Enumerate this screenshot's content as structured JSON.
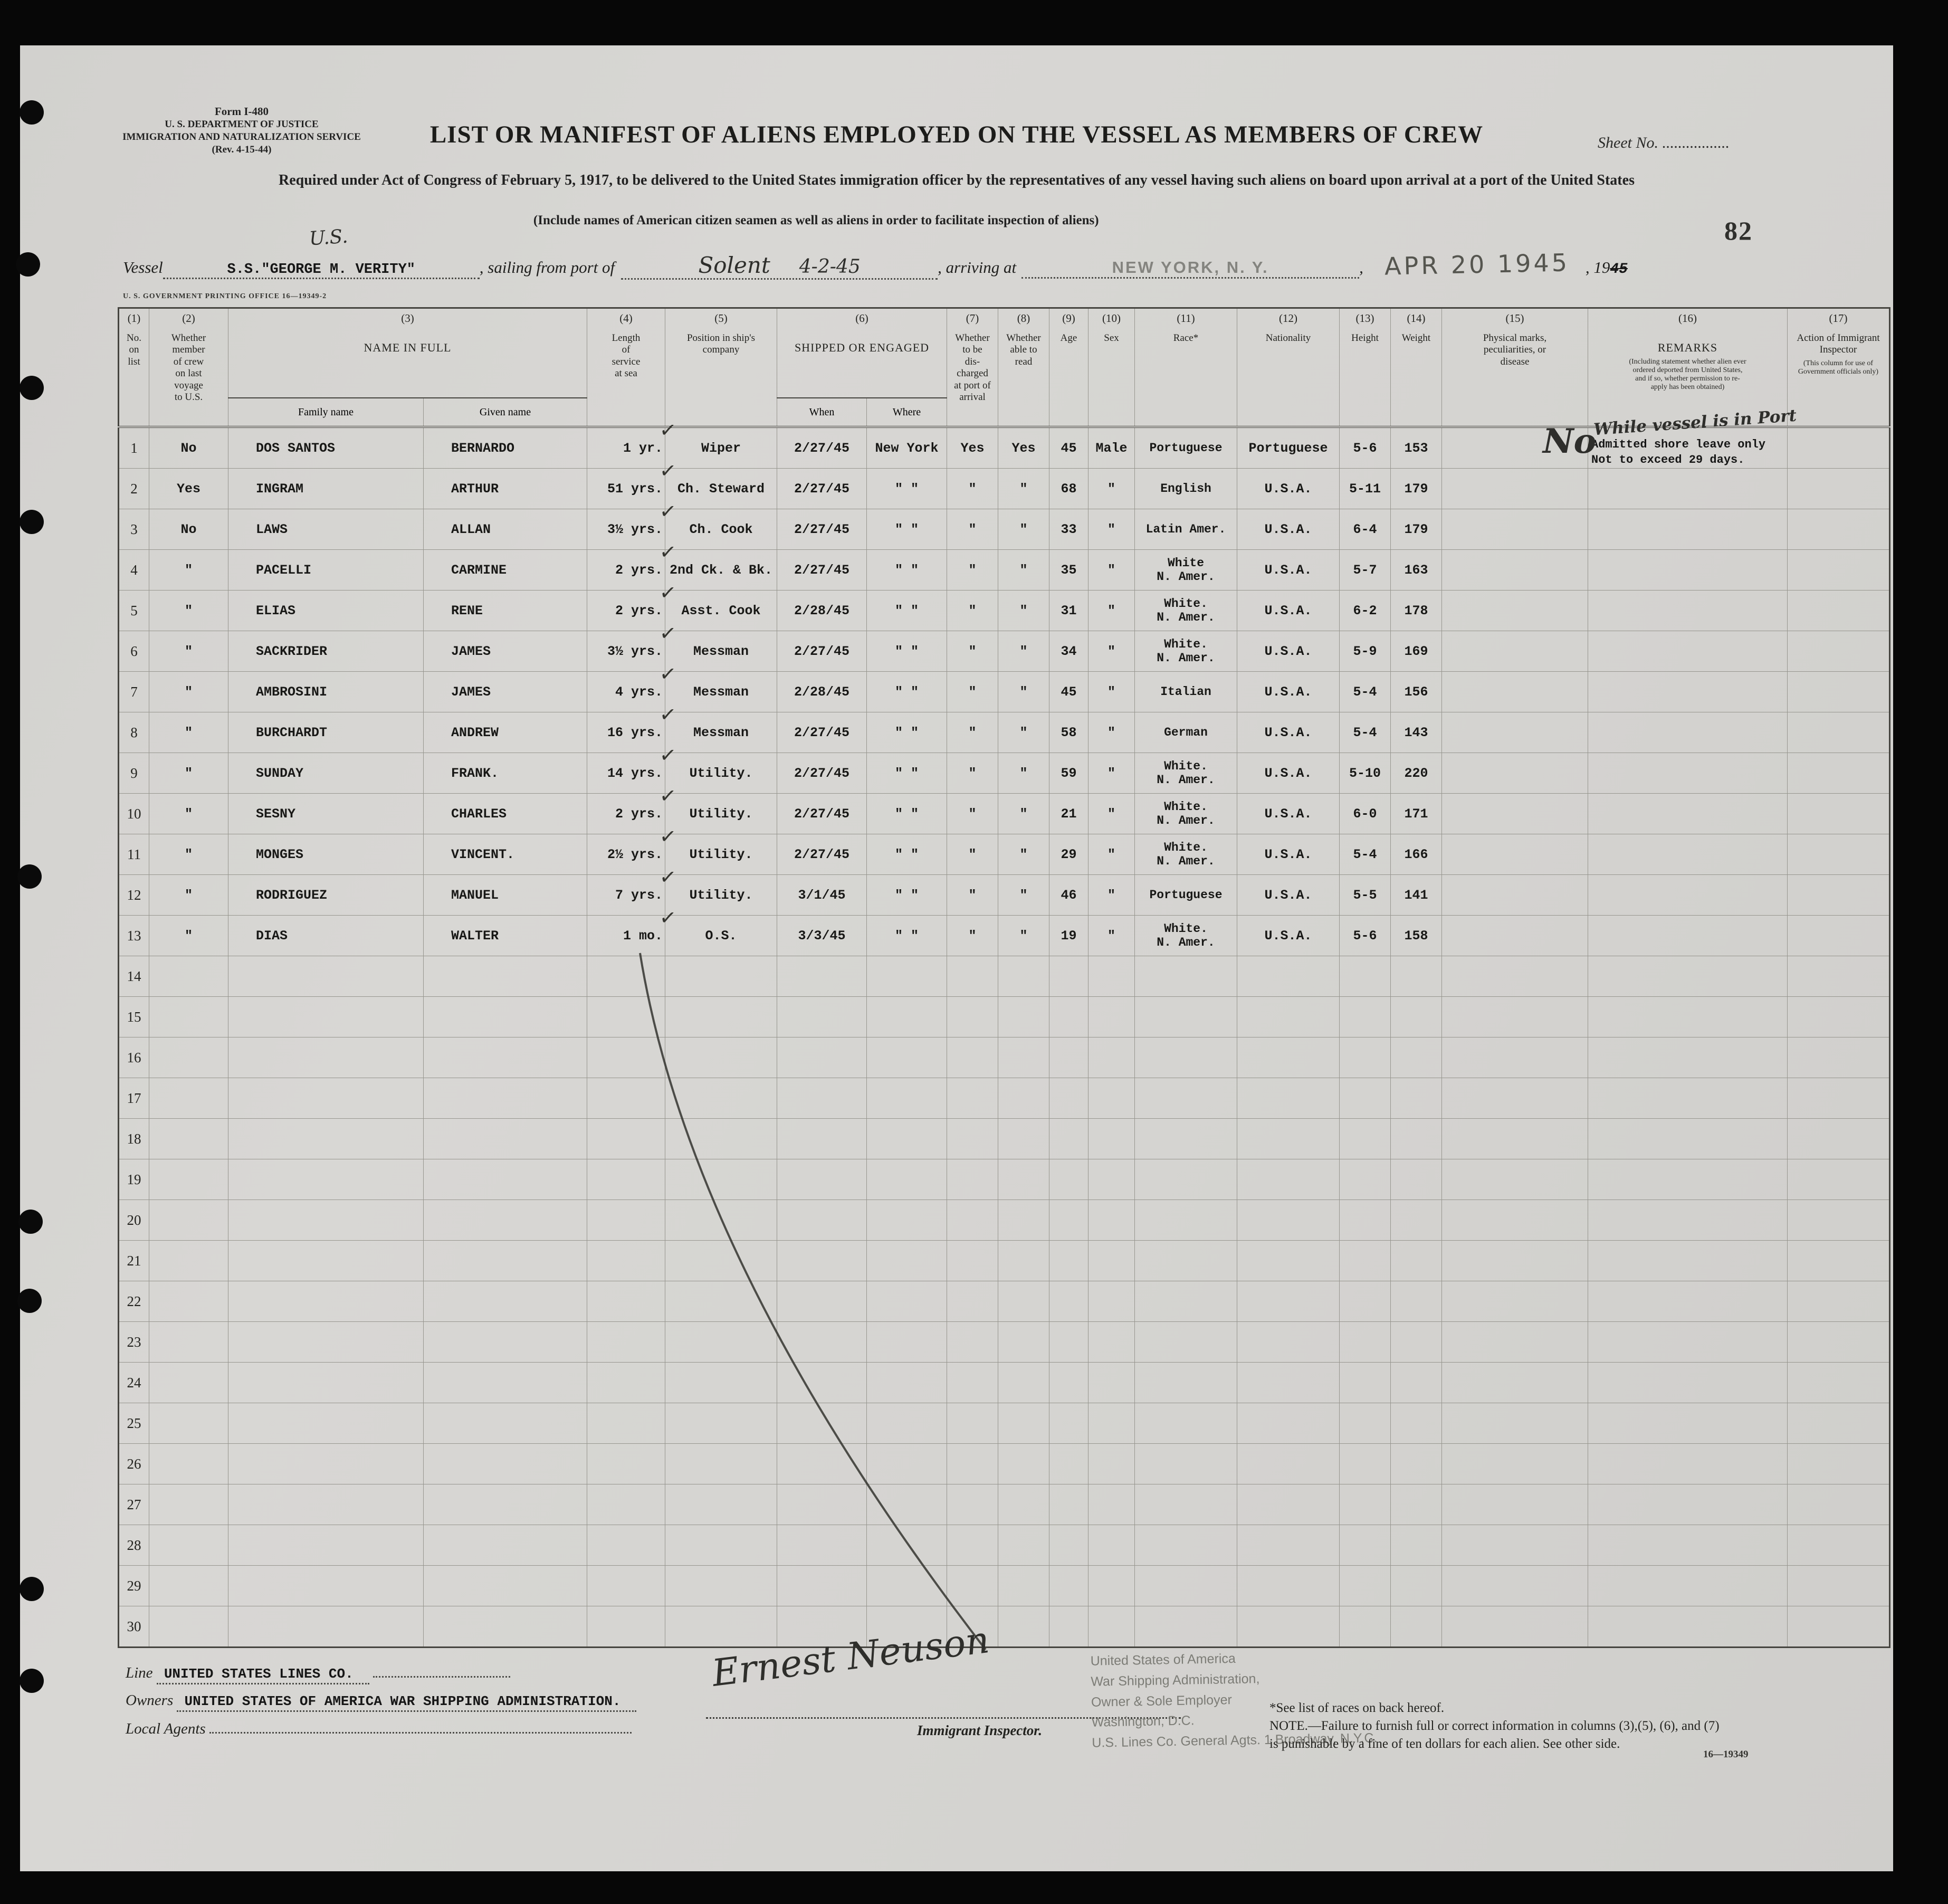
{
  "form_id": {
    "line1": "Form I-480",
    "line2": "U. S. DEPARTMENT OF JUSTICE",
    "line3": "IMMIGRATION AND NATURALIZATION SERVICE",
    "line4": "(Rev. 4-15-44)"
  },
  "sheet_no_label": "Sheet No. .................",
  "page_number": "82",
  "title": "LIST OR MANIFEST OF ALIENS EMPLOYED ON THE VESSEL AS MEMBERS OF CREW",
  "subtitle": "Required under Act of Congress of February 5, 1917, to be delivered to the United States immigration officer by the representatives of any vessel having such aliens on board upon arrival at a port of the United States",
  "include_note": "(Include names of American citizen seamen as well as aliens in order to facilitate inspection of aliens)",
  "vessel_line": {
    "handwritten_us": "U.S.",
    "vessel_label": "Vessel",
    "vessel_name": "S.S.\"GEORGE M. VERITY\"",
    "sailing_label": ", sailing from port of",
    "port_handwritten": "Solent",
    "date_handwritten": "4-2-45",
    "arriving_label": ", arriving at",
    "arrival_port_stamp": "NEW YORK, N. Y.",
    "comma": ",",
    "date_stamp": "APR 20 1945",
    "year_label": ", 19",
    "year_struck": "45"
  },
  "printing_office": "U. S. GOVERNMENT PRINTING OFFICE     16—19349-2",
  "table": {
    "col_numbers": [
      "(1)",
      "(2)",
      "(3)",
      "(4)",
      "(5)",
      "(6)",
      "(7)",
      "(8)",
      "(9)",
      "(10)",
      "(11)",
      "(12)",
      "(13)",
      "(14)",
      "(15)",
      "(16)",
      "(17)"
    ],
    "headers": {
      "no": "No.\non\nlist",
      "member": "Whether\nmember\nof crew\non last\nvoyage\nto U.S.",
      "name_in_full": "NAME IN FULL",
      "family": "Family name",
      "given": "Given name",
      "length": "Length\nof\nservice\nat sea",
      "position": "Position in ship's\ncompany",
      "shipped": "SHIPPED OR ENGAGED",
      "when": "When",
      "where": "Where",
      "discharged": "Whether\nto be\ndis-\ncharged\nat port of\narrival",
      "read": "Whether\nable to\nread",
      "age": "Age",
      "sex": "Sex",
      "race": "Race*",
      "nationality": "Nationality",
      "height": "Height",
      "weight": "Weight",
      "marks": "Physical marks,\npeculiarities, or\ndisease",
      "remarks": "REMARKS",
      "remarks_sub": "(Including statement whether alien ever\nordered deported from United States,\nand if so, whether permission to re-\napply has been obtained)",
      "action": "Action of Immigrant\nInspector",
      "action_sub": "(This column for use of\nGovernment officials only)"
    },
    "rows": [
      {
        "no": "1",
        "member": "No",
        "family": "DOS SANTOS",
        "given": "BERNARDO",
        "length": "1 yr.",
        "check": true,
        "position": "Wiper",
        "when": "2/27/45",
        "where": "New York",
        "discharged": "Yes",
        "read": "Yes",
        "age": "45",
        "sex": "Male",
        "race": "Portuguese",
        "nationality": "Portuguese",
        "height": "5-6",
        "weight": "153",
        "remarks_hand": "While vessel is in Port",
        "remarks_typed": "Admitted shore leave only\nNot to exceed 29 days.",
        "action_hand": "No"
      },
      {
        "no": "2",
        "member": "Yes",
        "family": "INGRAM",
        "given": "ARTHUR",
        "length": "51 yrs.",
        "check": true,
        "position": "Ch. Steward",
        "when": "2/27/45",
        "where": "\"  \"",
        "discharged": "\"",
        "read": "\"",
        "age": "68",
        "sex": "\"",
        "race": "English",
        "nationality": "U.S.A.",
        "height": "5-11",
        "weight": "179"
      },
      {
        "no": "3",
        "member": "No",
        "family": "LAWS",
        "given": "ALLAN",
        "length": "3½ yrs.",
        "check": true,
        "position": "Ch. Cook",
        "when": "2/27/45",
        "where": "\"  \"",
        "discharged": "\"",
        "read": "\"",
        "age": "33",
        "sex": "\"",
        "race": "Latin Amer.",
        "nationality": "U.S.A.",
        "height": "6-4",
        "weight": "179"
      },
      {
        "no": "4",
        "member": "\"",
        "family": "PACELLI",
        "given": "CARMINE",
        "length": "2 yrs.",
        "check": true,
        "position": "2nd Ck. & Bk.",
        "when": "2/27/45",
        "where": "\"  \"",
        "discharged": "\"",
        "read": "\"",
        "age": "35",
        "sex": "\"",
        "race": "White\nN. Amer.",
        "nationality": "U.S.A.",
        "height": "5-7",
        "weight": "163"
      },
      {
        "no": "5",
        "member": "\"",
        "family": "ELIAS",
        "given": "RENE",
        "length": "2 yrs.",
        "check": true,
        "position": "Asst. Cook",
        "when": "2/28/45",
        "where": "\"  \"",
        "discharged": "\"",
        "read": "\"",
        "age": "31",
        "sex": "\"",
        "race": "White.\nN. Amer.",
        "nationality": "U.S.A.",
        "height": "6-2",
        "weight": "178"
      },
      {
        "no": "6",
        "member": "\"",
        "family": "SACKRIDER",
        "given": "JAMES",
        "length": "3½ yrs.",
        "check": true,
        "position": "Messman",
        "when": "2/27/45",
        "where": "\"  \"",
        "discharged": "\"",
        "read": "\"",
        "age": "34",
        "sex": "\"",
        "race": "White.\nN. Amer.",
        "nationality": "U.S.A.",
        "height": "5-9",
        "weight": "169"
      },
      {
        "no": "7",
        "member": "\"",
        "family": "AMBROSINI",
        "given": "JAMES",
        "length": "4 yrs.",
        "check": true,
        "position": "Messman",
        "when": "2/28/45",
        "where": "\"  \"",
        "discharged": "\"",
        "read": "\"",
        "age": "45",
        "sex": "\"",
        "race": "Italian",
        "nationality": "U.S.A.",
        "height": "5-4",
        "weight": "156"
      },
      {
        "no": "8",
        "member": "\"",
        "family": "BURCHARDT",
        "given": "ANDREW",
        "length": "16 yrs.",
        "check": true,
        "position": "Messman",
        "when": "2/27/45",
        "where": "\"  \"",
        "discharged": "\"",
        "read": "\"",
        "age": "58",
        "sex": "\"",
        "race": "German",
        "nationality": "U.S.A.",
        "height": "5-4",
        "weight": "143"
      },
      {
        "no": "9",
        "member": "\"",
        "family": "SUNDAY",
        "given": "FRANK.",
        "length": "14 yrs.",
        "check": true,
        "position": "Utility.",
        "when": "2/27/45",
        "where": "\"  \"",
        "discharged": "\"",
        "read": "\"",
        "age": "59",
        "sex": "\"",
        "race": "White.\nN. Amer.",
        "nationality": "U.S.A.",
        "height": "5-10",
        "weight": "220"
      },
      {
        "no": "10",
        "member": "\"",
        "family": "SESNY",
        "given": "CHARLES",
        "length": "2 yrs.",
        "check": true,
        "position": "Utility.",
        "when": "2/27/45",
        "where": "\"  \"",
        "discharged": "\"",
        "read": "\"",
        "age": "21",
        "sex": "\"",
        "race": "White.\nN. Amer.",
        "nationality": "U.S.A.",
        "height": "6-0",
        "weight": "171"
      },
      {
        "no": "11",
        "member": "\"",
        "family": "MONGES",
        "given": "VINCENT.",
        "length": "2½ yrs.",
        "check": true,
        "position": "Utility.",
        "when": "2/27/45",
        "where": "\"  \"",
        "discharged": "\"",
        "read": "\"",
        "age": "29",
        "sex": "\"",
        "race": "White.\nN. Amer.",
        "nationality": "U.S.A.",
        "height": "5-4",
        "weight": "166"
      },
      {
        "no": "12",
        "member": "\"",
        "family": "RODRIGUEZ",
        "given": "MANUEL",
        "length": "7 yrs.",
        "check": true,
        "position": "Utility.",
        "when": "3/1/45",
        "where": "\"  \"",
        "discharged": "\"",
        "read": "\"",
        "age": "46",
        "sex": "\"",
        "race": "Portuguese",
        "nationality": "U.S.A.",
        "height": "5-5",
        "weight": "141"
      },
      {
        "no": "13",
        "member": "\"",
        "family": "DIAS",
        "given": "WALTER",
        "length": "1 mo.",
        "check": true,
        "position": "O.S.",
        "when": "3/3/45",
        "where": "\"  \"",
        "discharged": "\"",
        "read": "\"",
        "age": "19",
        "sex": "\"",
        "race": "White.\nN. Amer.",
        "nationality": "U.S.A.",
        "height": "5-6",
        "weight": "158"
      },
      {
        "no": "14"
      },
      {
        "no": "15"
      },
      {
        "no": "16"
      },
      {
        "no": "17"
      },
      {
        "no": "18"
      },
      {
        "no": "19"
      },
      {
        "no": "20"
      },
      {
        "no": "21"
      },
      {
        "no": "22"
      },
      {
        "no": "23"
      },
      {
        "no": "24"
      },
      {
        "no": "25"
      },
      {
        "no": "26"
      },
      {
        "no": "27"
      },
      {
        "no": "28"
      },
      {
        "no": "29"
      },
      {
        "no": "30"
      }
    ]
  },
  "footer": {
    "line_label": "Line",
    "line_value": "UNITED STATES LINES CO.",
    "owners_label": "Owners",
    "owners_value": "UNITED STATES OF AMERICA WAR SHIPPING ADMINISTRATION.",
    "agents_label": "Local Agents",
    "signature": "Ernest Neuson",
    "inspector_label": "Immigrant Inspector.",
    "stamp": "United States of America\nWar Shipping Administration,\nOwner & Sole Employer\nWashington, D.C.\nU.S. Lines Co. General Agts. 1 Broadway, N.Y.C.",
    "races_note": "*See list of races on back hereof.",
    "note": "NOTE.—Failure to furnish full or correct information in columns (3),(5), (6), and (7)\nis punishable by a fine of ten dollars for each alien.   See other side.",
    "form_code": "16—19349"
  }
}
